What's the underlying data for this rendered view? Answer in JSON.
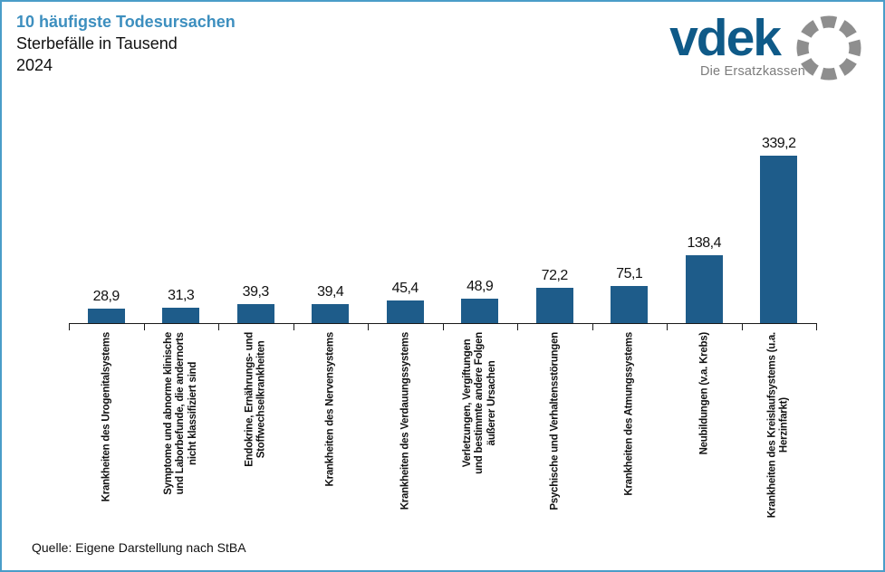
{
  "header": {
    "title": "10 häufigste Todesursachen",
    "subtitle": "Sterbefälle in Tausend",
    "year": "2024"
  },
  "logo": {
    "brand": "vdek",
    "tagline": "Die Ersatzkassen",
    "ring_icon": "segmented-circle"
  },
  "chart_data": {
    "type": "bar",
    "title": "10 häufigste Todesursachen",
    "subtitle": "Sterbefälle in Tausend",
    "year": "2024",
    "unit": "Tausend (thousands of deaths)",
    "categories": [
      "Krankheiten des Urogenitalsystems",
      "Symptome und abnorme klinische und Laborbefunde, die andernorts nicht klassifiziert sind",
      "Endokrine, Ernährungs- und Stoffwechselkrankheiten",
      "Krankheiten des Nervensystems",
      "Krankheiten des Verdauungssystems",
      "Verletzungen, Vergiftungen und bestimmte andere Folgen äußerer Ursachen",
      "Psychische und Verhaltensstörungen",
      "Krankheiten des Atmungssystems",
      "Neubildungen (v.a. Krebs)",
      "Krankheiten des Kreislaufsystems (u.a. Herzinfarkt)"
    ],
    "category_lines": [
      "Krankheiten des Urogenitalsystems",
      "Symptome und abnorme klinische\nund Laborbefunde, die andernorts\nnicht klassifiziert sind",
      "Endokrine, Ernährungs- und\nStoffwechselkrankheiten",
      "Krankheiten des Nervensystems",
      "Krankheiten des Verdauungssystems",
      "Verletzungen, Vergiftungen\nund bestimmte andere Folgen\näußerer Ursachen",
      "Psychische und Verhaltensstörungen",
      "Krankheiten des Atmungssystems",
      "Neubildungen (v.a. Krebs)",
      "Krankheiten des Kreislaufsystems (u.a.\nHerzinfarkt)"
    ],
    "values": [
      28.9,
      31.3,
      39.3,
      39.4,
      45.4,
      48.9,
      72.2,
      75.1,
      138.4,
      339.2
    ],
    "value_labels": [
      "28,9",
      "31,3",
      "39,3",
      "39,4",
      "45,4",
      "48,9",
      "72,2",
      "75,1",
      "138,4",
      "339,2"
    ],
    "ylim": [
      0,
      360
    ],
    "grid": false,
    "legend": null,
    "bar_color": "#1e5c8a"
  },
  "footer": {
    "source": "Quelle: Eigene Darstellung nach StBA"
  },
  "colors": {
    "accent_title": "#3d8fbf",
    "bar": "#1e5c8a",
    "logo_blue": "#0f5a88",
    "logo_gray": "#8e8e8e",
    "border": "#4a9dc8"
  }
}
